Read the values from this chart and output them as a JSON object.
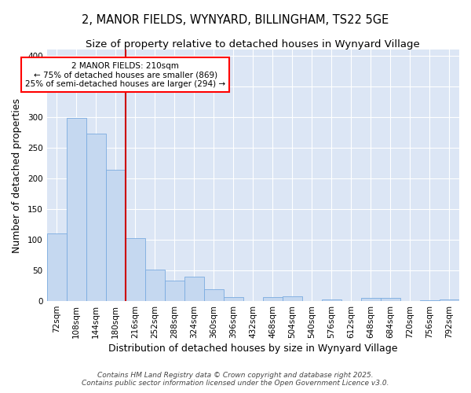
{
  "title_line1": "2, MANOR FIELDS, WYNYARD, BILLINGHAM, TS22 5GE",
  "title_line2": "Size of property relative to detached houses in Wynyard Village",
  "xlabel": "Distribution of detached houses by size in Wynyard Village",
  "ylabel": "Number of detached properties",
  "bar_color": "#c5d8f0",
  "bar_edge_color": "#7aabe0",
  "fig_bg_color": "#ffffff",
  "axes_bg_color": "#dce6f5",
  "grid_color": "#ffffff",
  "categories": [
    "72sqm",
    "108sqm",
    "144sqm",
    "180sqm",
    "216sqm",
    "252sqm",
    "288sqm",
    "324sqm",
    "360sqm",
    "396sqm",
    "432sqm",
    "468sqm",
    "504sqm",
    "540sqm",
    "576sqm",
    "612sqm",
    "648sqm",
    "684sqm",
    "720sqm",
    "756sqm",
    "792sqm"
  ],
  "values": [
    110,
    299,
    273,
    214,
    102,
    51,
    33,
    40,
    19,
    7,
    0,
    7,
    8,
    0,
    3,
    0,
    5,
    5,
    0,
    1,
    3
  ],
  "vline_index": 4,
  "vline_color": "#cc0000",
  "annotation_line1": "2 MANOR FIELDS: 210sqm",
  "annotation_line2": "← 75% of detached houses are smaller (869)",
  "annotation_line3": "25% of semi-detached houses are larger (294) →",
  "ylim": [
    0,
    410
  ],
  "yticks": [
    0,
    50,
    100,
    150,
    200,
    250,
    300,
    350,
    400
  ],
  "footnote": "Contains HM Land Registry data © Crown copyright and database right 2025.\nContains public sector information licensed under the Open Government Licence v3.0.",
  "title1_fontsize": 10.5,
  "title2_fontsize": 9.5,
  "axis_label_fontsize": 9,
  "tick_fontsize": 7.5,
  "footnote_fontsize": 6.5
}
